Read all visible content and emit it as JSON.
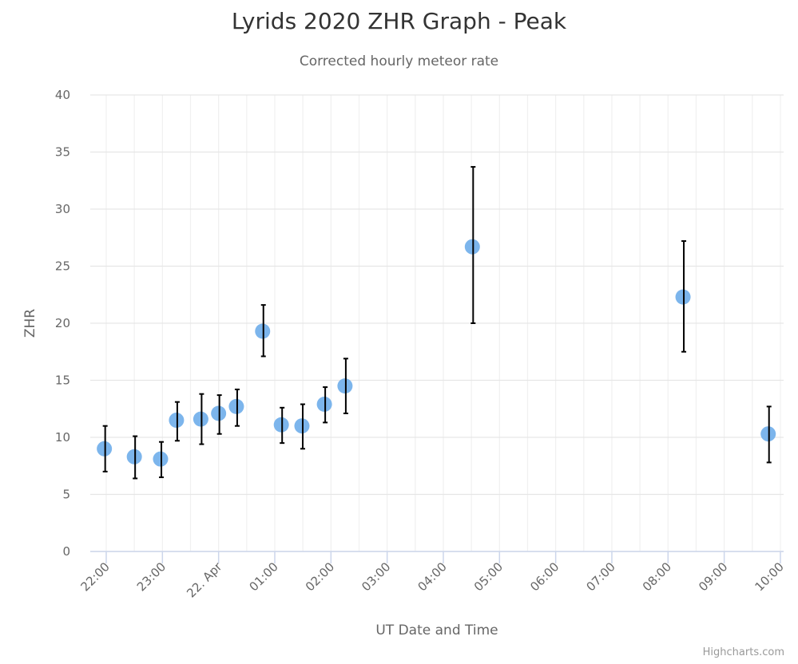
{
  "title": "Lyrids 2020 ZHR Graph - Peak",
  "subtitle": "Corrected hourly meteor rate",
  "credits": "Highcharts.com",
  "colors": {
    "marker": "#7cb5ec",
    "errorbar": "#000000",
    "grid": "#e6e6e6",
    "axis_line": "#ccd6eb"
  },
  "chart_data": {
    "type": "scatter",
    "title": "Lyrids 2020 ZHR Graph - Peak",
    "subtitle": "Corrected hourly meteor rate",
    "xlabel": "UT Date and Time",
    "ylabel": "ZHR",
    "ylim": [
      0,
      40
    ],
    "yticks": [
      "0",
      "5",
      "10",
      "15",
      "20",
      "25",
      "30",
      "35",
      "40"
    ],
    "xticks": [
      "22:00",
      "23:00",
      "22. Apr",
      "01:00",
      "02:00",
      "03:00",
      "04:00",
      "05:00",
      "06:00",
      "07:00",
      "08:00",
      "09:00",
      "10:00"
    ],
    "grid": true,
    "legend": null,
    "series": [
      {
        "name": "ZHR",
        "points": [
          {
            "x": "21:58",
            "y": 9.0,
            "low": 7.0,
            "high": 11.0
          },
          {
            "x": "22:30",
            "y": 8.3,
            "low": 6.4,
            "high": 10.1
          },
          {
            "x": "22:58",
            "y": 8.1,
            "low": 6.5,
            "high": 9.6
          },
          {
            "x": "23:15",
            "y": 11.5,
            "low": 9.7,
            "high": 13.1
          },
          {
            "x": "23:41",
            "y": 11.6,
            "low": 9.4,
            "high": 13.8
          },
          {
            "x": "00:00",
            "y": 12.1,
            "low": 10.3,
            "high": 13.7
          },
          {
            "x": "00:19",
            "y": 12.7,
            "low": 11.0,
            "high": 14.2
          },
          {
            "x": "00:47",
            "y": 19.3,
            "low": 17.1,
            "high": 21.6
          },
          {
            "x": "01:07",
            "y": 11.1,
            "low": 9.5,
            "high": 12.6
          },
          {
            "x": "01:29",
            "y": 11.0,
            "low": 9.0,
            "high": 12.9
          },
          {
            "x": "01:53",
            "y": 12.9,
            "low": 11.3,
            "high": 14.4
          },
          {
            "x": "02:15",
            "y": 14.5,
            "low": 12.1,
            "high": 16.9
          },
          {
            "x": "04:31",
            "y": 26.7,
            "low": 20.0,
            "high": 33.7
          },
          {
            "x": "08:16",
            "y": 22.3,
            "low": 17.5,
            "high": 27.2
          },
          {
            "x": "09:47",
            "y": 10.3,
            "low": 7.8,
            "high": 12.7
          }
        ]
      }
    ]
  }
}
